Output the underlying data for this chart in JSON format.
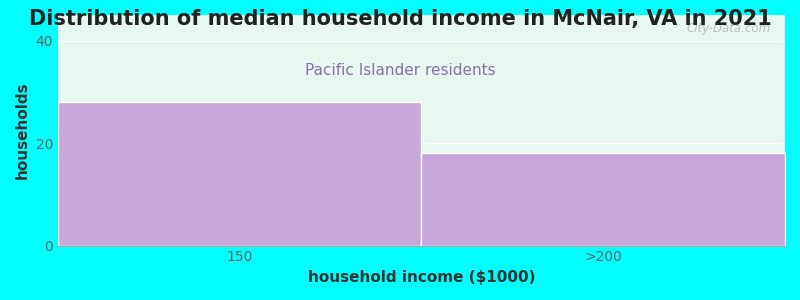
{
  "title": "Distribution of median household income in McNair, VA in 2021",
  "subtitle": "Pacific Islander residents",
  "xlabel": "household income ($1000)",
  "ylabel": "households",
  "background_color": "#00FFFF",
  "plot_bg_top": "#E8F8F0",
  "plot_bg_bottom": "#F5F0FA",
  "bar_color": "#C8A8D8",
  "bar_edge_color": "#FFFFFF",
  "categories": [
    "150",
    ">200"
  ],
  "values": [
    28,
    18
  ],
  "ylim": [
    0,
    45
  ],
  "yticks": [
    0,
    20,
    40
  ],
  "title_fontsize": 15,
  "subtitle_fontsize": 11,
  "subtitle_color": "#8B6FAA",
  "axis_label_fontsize": 11,
  "tick_fontsize": 10,
  "watermark": "City-Data.com"
}
